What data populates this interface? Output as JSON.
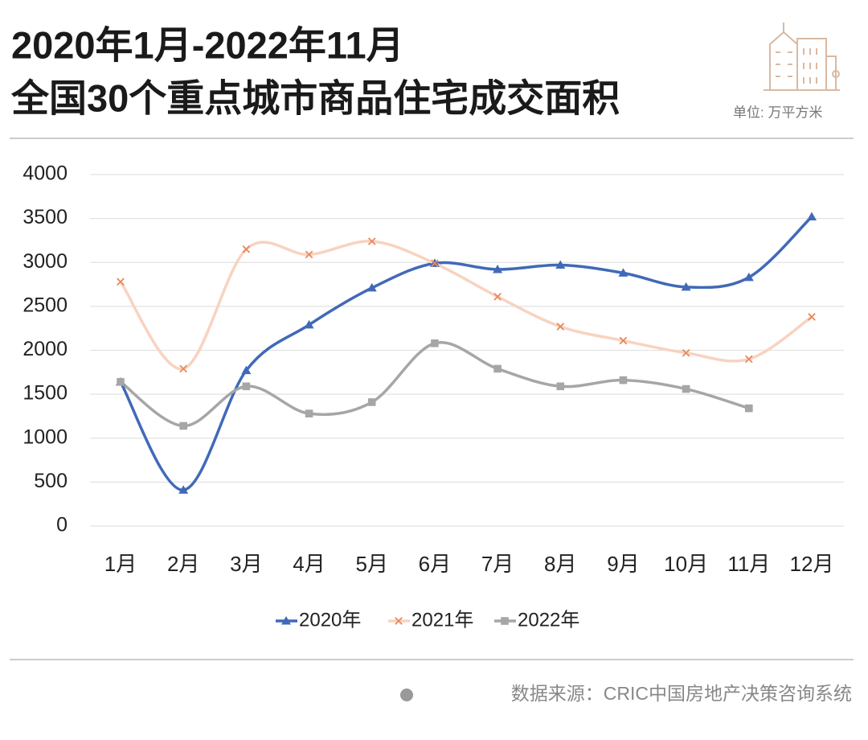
{
  "chart_data": {
    "type": "line",
    "title": [
      "2020年1月-2022年11月",
      "全国30个重点城市商品住宅成交面积"
    ],
    "unit": "单位: 万平方米",
    "source": "数据来源：CRIC中国房地产决策咨询系统",
    "categories": [
      "1月",
      "2月",
      "3月",
      "4月",
      "5月",
      "6月",
      "7月",
      "8月",
      "9月",
      "10月",
      "11月",
      "12月"
    ],
    "series": [
      {
        "name": "2020年",
        "color": "#4169b8",
        "marker_color": "#4169b8",
        "marker": "triangle",
        "values": [
          1640,
          410,
          1770,
          2290,
          2710,
          2990,
          2920,
          2970,
          2880,
          2720,
          2830,
          3520
        ]
      },
      {
        "name": "2021年",
        "color": "#f8d3c0",
        "marker_color": "#e8895e",
        "marker": "x",
        "values": [
          2780,
          1790,
          3150,
          3090,
          3240,
          2990,
          2610,
          2270,
          2110,
          1970,
          1900,
          2380
        ]
      },
      {
        "name": "2022年",
        "color": "#a6a6a6",
        "marker_color": "#a6a6a6",
        "marker": "square",
        "values": [
          1640,
          1140,
          1590,
          1280,
          1410,
          2080,
          1790,
          1590,
          1660,
          1560,
          1340,
          null
        ]
      }
    ],
    "ylim": [
      0,
      4000
    ],
    "yticks": [
      0,
      500,
      1000,
      1500,
      2000,
      2500,
      3000,
      3500,
      4000
    ],
    "grid": true,
    "smooth": true,
    "legend": "bottom"
  }
}
